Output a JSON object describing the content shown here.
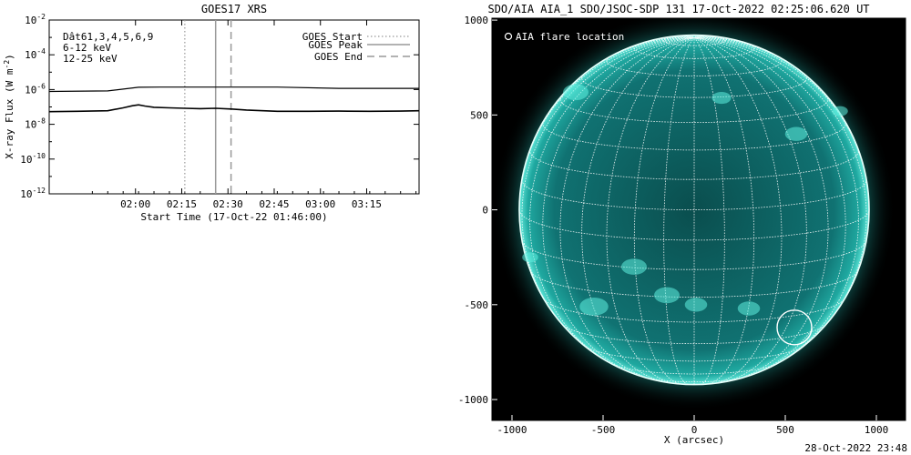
{
  "chart_data": [
    {
      "type": "line",
      "title": "GOES17 XRS",
      "xlabel": "Start Time (17-Oct-22 01:46:00)",
      "ylabel": "X-ray Flux (W m",
      "ylabel_sup": "-2",
      "ylabel_end": ")",
      "x_ticks": [
        "02:00",
        "02:15",
        "02:30",
        "02:45",
        "03:00",
        "03:15"
      ],
      "y_ticks": [
        {
          "base": "10",
          "exp": "-2"
        },
        {
          "base": "10",
          "exp": "-4"
        },
        {
          "base": "10",
          "exp": "-6"
        },
        {
          "base": "10",
          "exp": "-8"
        },
        {
          "base": "10",
          "exp": "-10"
        },
        {
          "base": "10",
          "exp": "-12"
        }
      ],
      "x_range_minutes": [
        -14,
        106
      ],
      "y_log_range": [
        -12,
        -2
      ],
      "legend_left": {
        "channels": "Dât61,3,4,5,6,9",
        "low_band": "6-12 keV",
        "high_band": "12-25 keV",
        "low_band_color": "#ff00ff",
        "high_band_color": "#00cc00"
      },
      "legend_right": [
        "GOES Start",
        "GOES Peak",
        "GOES End"
      ],
      "markers": {
        "start_min": 30,
        "peak_min": 40,
        "end_min": 45
      },
      "series": [
        {
          "x_min": [
            -14,
            5,
            15,
            22,
            30,
            40,
            50,
            60,
            80,
            106
          ],
          "log_flux": [
            -6.11,
            -6.08,
            -5.87,
            -5.86,
            -5.86,
            -5.86,
            -5.86,
            -5.86,
            -5.93,
            -5.93
          ]
        },
        {
          "x_min": [
            -14,
            -5,
            5,
            10,
            13,
            15,
            17,
            20,
            25,
            30,
            35,
            40,
            45,
            50,
            60,
            70,
            80,
            90,
            100,
            106
          ],
          "log_flux": [
            -7.27,
            -7.25,
            -7.22,
            -7.05,
            -6.93,
            -6.88,
            -6.95,
            -7.02,
            -7.05,
            -7.08,
            -7.1,
            -7.08,
            -7.12,
            -7.18,
            -7.25,
            -7.25,
            -7.24,
            -7.25,
            -7.24,
            -7.22
          ]
        }
      ]
    },
    {
      "type": "scatter",
      "title": "SDO/AIA AIA_1 SDO/JSOC-SDP 131 17-Oct-2022 02:25:06.620 UT",
      "xlabel": "X (arcsec)",
      "x_ticks": [
        "-1000",
        "-500",
        "0",
        "500",
        "1000"
      ],
      "y_ticks": [
        "1000",
        "500",
        "0",
        "-500",
        "-1000"
      ],
      "xlim": [
        -1110,
        1160
      ],
      "ylim": [
        -1110,
        1010
      ],
      "legend": "AIA flare location",
      "flare_location": {
        "x": 550,
        "y": -620
      },
      "solar_radius_arcsec": 960,
      "disk_color": "#0f6e6e",
      "limb_color": "#3fe8d8",
      "background": "#000000"
    }
  ],
  "footer": {
    "timestamp": "28-Oct-2022 23:48"
  }
}
